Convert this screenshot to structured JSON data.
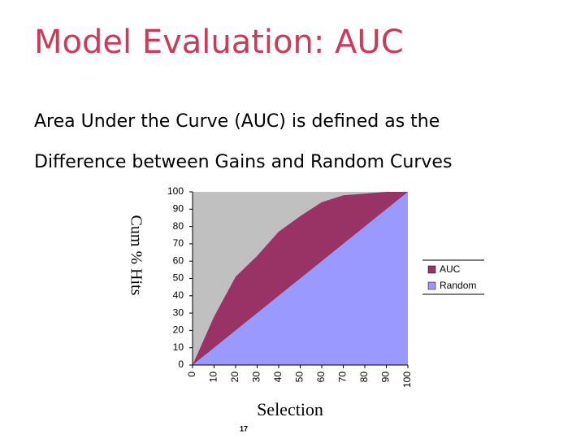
{
  "header": {
    "title": "Model Evaluation: AUC"
  },
  "body": {
    "lines": [
      "Area Under the Curve (AUC) is defined as the",
      "Difference between Gains and Random Curves"
    ]
  },
  "chart_data": {
    "type": "stacked-area",
    "x_label": "Selection",
    "y_label": "Cum % Hits",
    "x": [
      0,
      10,
      20,
      30,
      40,
      50,
      60,
      70,
      80,
      90,
      100
    ],
    "series": [
      {
        "name": "AUC",
        "color": "#993366",
        "values": [
          0,
          18,
          31,
          33,
          37,
          36,
          34,
          28,
          19,
          10,
          0
        ]
      },
      {
        "name": "Random",
        "color": "#9999ff",
        "values": [
          0,
          10,
          20,
          30,
          40,
          50,
          60,
          70,
          80,
          90,
          100
        ]
      }
    ],
    "xlim": [
      0,
      100
    ],
    "xticks": [
      0,
      10,
      20,
      30,
      40,
      50,
      60,
      70,
      80,
      90,
      100
    ],
    "ylim": [
      0,
      100
    ],
    "yticks": [
      0,
      10,
      20,
      30,
      40,
      50,
      60,
      70,
      80,
      90,
      100
    ],
    "plot_background": "#c0c0c0",
    "legend": "right"
  },
  "footer": {
    "page_number": 17
  }
}
